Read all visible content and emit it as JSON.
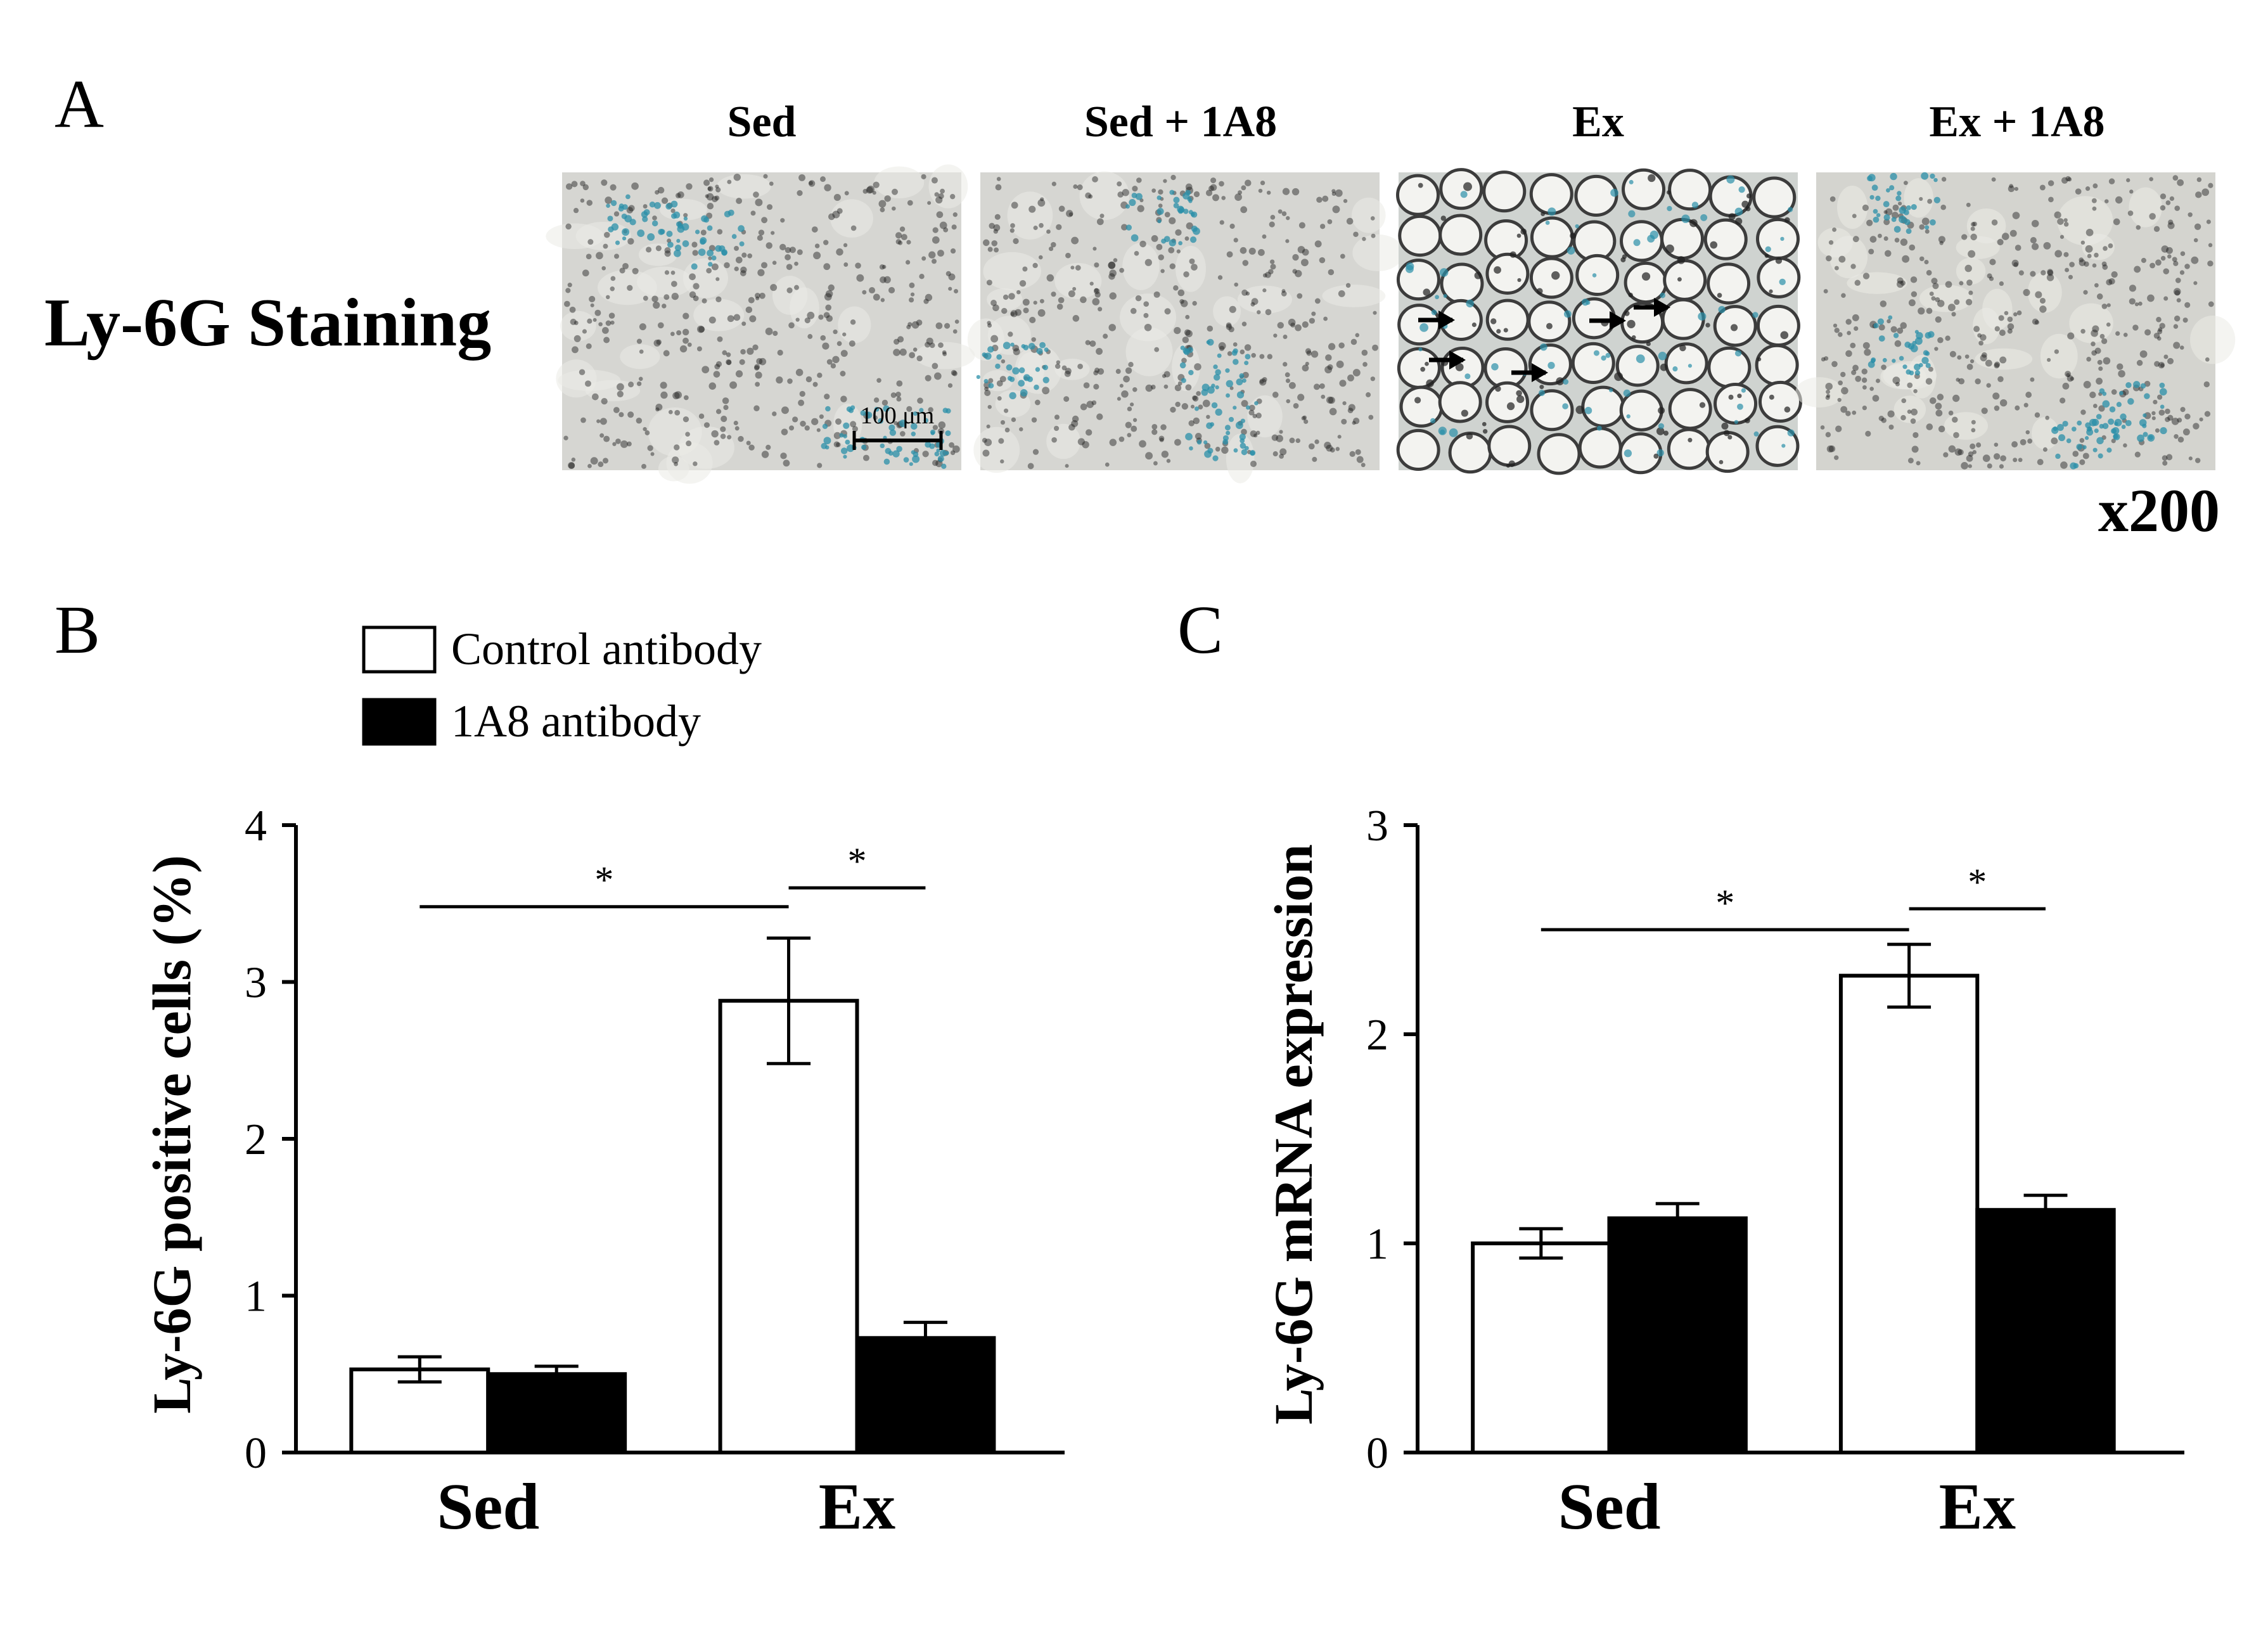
{
  "panel_a": {
    "letter": "A",
    "row_label": "Ly-6G Staining",
    "columns": [
      "Sed",
      "Sed + 1A8",
      "Ex",
      "Ex + 1A8"
    ],
    "scale_bar_label": "100 μm",
    "magnification": "x200",
    "colors": {
      "tissue_background": "#d6d6d2",
      "nuclei": "#7a7a7a",
      "positive_stain": "#2a8fa8",
      "ex_membrane": "#3c3c3c"
    }
  },
  "legend": {
    "items": [
      {
        "label": "Control antibody",
        "color": "#ffffff"
      },
      {
        "label": "1A8 antibody",
        "color": "#000000"
      }
    ]
  },
  "chart_data": [
    {
      "panel": "B",
      "type": "bar",
      "title": "",
      "xlabel": "",
      "ylabel": "Ly-6G positive cells (%)",
      "categories": [
        "Sed",
        "Ex"
      ],
      "ylim": [
        0,
        4
      ],
      "yticks": [
        0,
        1,
        2,
        3,
        4
      ],
      "series": [
        {
          "name": "Control antibody",
          "color": "#ffffff",
          "values": [
            0.53,
            2.88
          ],
          "errors": [
            0.08,
            0.4
          ]
        },
        {
          "name": "1A8 antibody",
          "color": "#000000",
          "values": [
            0.5,
            0.73
          ],
          "errors": [
            0.05,
            0.1
          ]
        }
      ],
      "annotations": [
        {
          "text": "*",
          "from": [
            "Sed",
            "Control antibody"
          ],
          "to": [
            "Ex",
            "Control antibody"
          ],
          "y": 3.48
        },
        {
          "text": "*",
          "from": [
            "Ex",
            "Control antibody"
          ],
          "to": [
            "Ex",
            "1A8 antibody"
          ],
          "y": 3.6
        }
      ]
    },
    {
      "panel": "C",
      "type": "bar",
      "title": "",
      "xlabel": "",
      "ylabel": "Ly-6G mRNA expression",
      "categories": [
        "Sed",
        "Ex"
      ],
      "ylim": [
        0,
        3
      ],
      "yticks": [
        0,
        1,
        2,
        3
      ],
      "series": [
        {
          "name": "Control antibody",
          "color": "#ffffff",
          "values": [
            1.0,
            2.28
          ],
          "errors": [
            0.07,
            0.15
          ]
        },
        {
          "name": "1A8 antibody",
          "color": "#000000",
          "values": [
            1.12,
            1.16
          ],
          "errors": [
            0.07,
            0.07
          ]
        }
      ],
      "annotations": [
        {
          "text": "*",
          "from": [
            "Sed",
            "Control antibody"
          ],
          "to": [
            "Ex",
            "Control antibody"
          ],
          "y": 2.5
        },
        {
          "text": "*",
          "from": [
            "Ex",
            "Control antibody"
          ],
          "to": [
            "Ex",
            "1A8 antibody"
          ],
          "y": 2.6
        }
      ]
    }
  ]
}
